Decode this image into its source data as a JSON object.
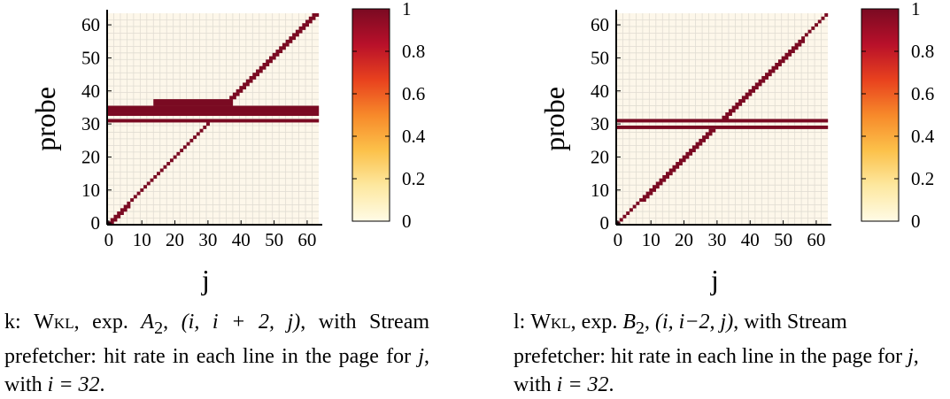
{
  "chart_data": [
    {
      "id": "k",
      "type": "heatmap",
      "title": "",
      "xlabel": "j",
      "ylabel": "probe",
      "xlim": [
        0,
        63
      ],
      "ylim": [
        0,
        63
      ],
      "xticks": [
        "0",
        "10",
        "20",
        "30",
        "40",
        "50",
        "60"
      ],
      "yticks": [
        "0",
        "10",
        "20",
        "30",
        "40",
        "50",
        "60"
      ],
      "colorbar": {
        "min": 0,
        "max": 1,
        "ticks": [
          "0",
          "0.2",
          "0.4",
          "0.6",
          "0.8",
          "1"
        ]
      },
      "grid": true,
      "default_value": 0,
      "hits": [
        {
          "desc": "diagonal",
          "value": 1,
          "rows": [
            0,
            63
          ],
          "cols": "row",
          "except_rows": [
            32,
            33
          ]
        },
        {
          "desc": "thick diagonal near origin",
          "value": 1,
          "rows": [
            0,
            5
          ],
          "cols_offset": [
            0,
            1
          ]
        },
        {
          "desc": "horizontal line",
          "value": 1,
          "rows": [
            31,
            31
          ],
          "cols": [
            0,
            63
          ]
        },
        {
          "desc": "horizontal band",
          "value": 1,
          "rows": [
            33,
            35
          ],
          "cols": [
            0,
            63
          ]
        },
        {
          "desc": "band bump",
          "value": 1,
          "rows": [
            36,
            37
          ],
          "cols": [
            14,
            37
          ]
        },
        {
          "desc": "thick diagonal upper",
          "value": 1,
          "rows": [
            36,
            63
          ],
          "cols_offset": [
            -1,
            0
          ]
        }
      ]
    },
    {
      "id": "l",
      "type": "heatmap",
      "title": "",
      "xlabel": "j",
      "ylabel": "probe",
      "xlim": [
        0,
        63
      ],
      "ylim": [
        0,
        63
      ],
      "xticks": [
        "0",
        "10",
        "20",
        "30",
        "40",
        "50",
        "60"
      ],
      "yticks": [
        "0",
        "10",
        "20",
        "30",
        "40",
        "50",
        "60"
      ],
      "colorbar": {
        "min": 0,
        "max": 1,
        "ticks": [
          "0",
          "0.2",
          "0.4",
          "0.6",
          "0.8",
          "1"
        ]
      },
      "grid": true,
      "default_value": 0,
      "hits": [
        {
          "desc": "diagonal",
          "value": 1,
          "rows": [
            0,
            63
          ],
          "cols": "row",
          "except_rows": [
            30,
            31
          ]
        },
        {
          "desc": "thick diagonal lower",
          "value": 1,
          "rows": [
            7,
            29
          ],
          "cols_offset": [
            0,
            1
          ]
        },
        {
          "desc": "thick diagonal upper",
          "value": 1,
          "rows": [
            32,
            55
          ],
          "cols_offset": [
            0,
            1
          ]
        },
        {
          "desc": "horizontal line",
          "value": 1,
          "rows": [
            29,
            29
          ],
          "cols": [
            0,
            63
          ]
        },
        {
          "desc": "horizontal line",
          "value": 1,
          "rows": [
            31,
            31
          ],
          "cols": [
            0,
            63
          ]
        }
      ]
    }
  ],
  "colors": {
    "zero": "#fdf7ea",
    "grid": "#e0dcd2",
    "hit": "#7a0a22",
    "colormap": [
      "#fffbe6",
      "#fde8a0",
      "#fcc14a",
      "#f7892a",
      "#e8411e",
      "#b8102a",
      "#7a0a22"
    ]
  },
  "captions": [
    {
      "prefix": "k: ",
      "name": "Wkl",
      "mid": ", exp. ",
      "exp_letter": "A",
      "exp_sub": "2",
      "tuple": "(i, i + 2, j)",
      "rest": ", with Stream prefetcher: hit rate in each line in the page for ",
      "j": "j",
      "with": ", with ",
      "cond": "i = 32",
      "end": "."
    },
    {
      "prefix": "l: ",
      "name": "Wkl",
      "mid": ", exp. ",
      "exp_letter": "B",
      "exp_sub": "2",
      "tuple": "(i, i−2, j)",
      "rest": ", with Stream prefetcher: hit rate in each line in the page for ",
      "j": "j",
      "with": ", with ",
      "cond": "i = 32",
      "end": "."
    }
  ]
}
